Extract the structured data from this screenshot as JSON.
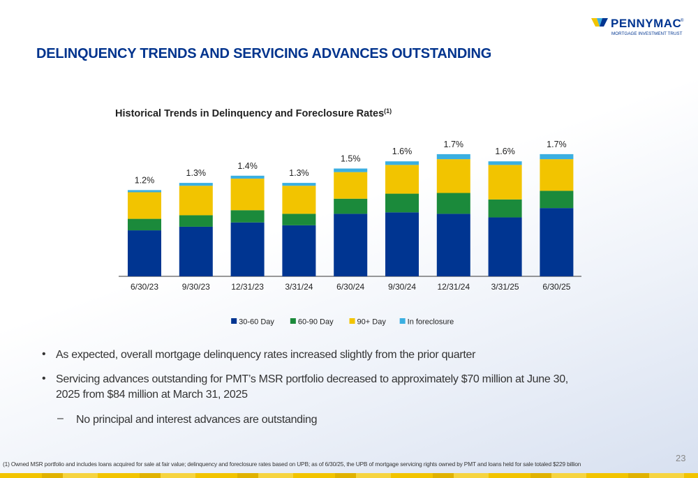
{
  "logo": {
    "name": "PENNYMAC",
    "mark": "®",
    "tagline": "MORTGAGE INVESTMENT TRUST"
  },
  "heading": "DELINQUENCY TRENDS AND SERVICING ADVANCES OUTSTANDING",
  "chart_data": {
    "type": "stacked_bar",
    "title": "Historical Trends in Delinquency and Foreclosure Rates",
    "title_note": "(1)",
    "categories": [
      "6/30/23",
      "9/30/23",
      "12/31/23",
      "3/31/24",
      "6/30/24",
      "9/30/24",
      "12/31/24",
      "3/31/25",
      "6/30/25"
    ],
    "series": [
      {
        "name": "30-60 Day",
        "color": "#003591",
        "values": [
          0.64,
          0.69,
          0.75,
          0.71,
          0.87,
          0.89,
          0.87,
          0.82,
          0.95
        ]
      },
      {
        "name": "60-90 Day",
        "color": "#1b8a3b",
        "values": [
          0.16,
          0.16,
          0.17,
          0.16,
          0.21,
          0.26,
          0.29,
          0.25,
          0.24
        ]
      },
      {
        "name": "90+ Day",
        "color": "#f2c400",
        "values": [
          0.37,
          0.41,
          0.44,
          0.39,
          0.37,
          0.4,
          0.47,
          0.48,
          0.44
        ]
      },
      {
        "name": "In foreclosure",
        "color": "#3bafe1",
        "values": [
          0.03,
          0.04,
          0.04,
          0.04,
          0.05,
          0.05,
          0.07,
          0.05,
          0.07
        ]
      }
    ],
    "totals": [
      1.2,
      1.3,
      1.4,
      1.3,
      1.5,
      1.6,
      1.7,
      1.6,
      1.7
    ],
    "total_labels": [
      "1.2%",
      "1.3%",
      "1.4%",
      "1.3%",
      "1.5%",
      "1.6%",
      "1.7%",
      "1.6%",
      "1.7%"
    ],
    "legend": "bottom"
  },
  "bullets": [
    "As expected, overall mortgage delinquency rates increased slightly from the prior quarter",
    "Servicing advances outstanding for PMT’s MSR portfolio decreased to approximately $70 million at June 30, 2025 from $84 million at March 31, 2025"
  ],
  "sub_bullet": "No principal and interest advances are outstanding",
  "footnote": "(1) Owned MSR portfolio and includes loans acquired for sale at fair value; delinquency and foreclosure rates based on UPB; as of 6/30/25, the UPB of mortgage servicing rights owned by PMT and loans held for sale totaled $229 billion",
  "page_number": "23"
}
